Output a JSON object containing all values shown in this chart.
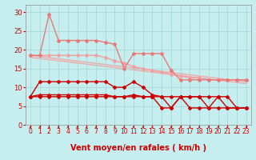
{
  "xlabel": "Vent moyen/en rafales ( km/h )",
  "xlim": [
    -0.5,
    23.5
  ],
  "ylim": [
    0,
    32
  ],
  "yticks": [
    0,
    5,
    10,
    15,
    20,
    25,
    30
  ],
  "xticks": [
    0,
    1,
    2,
    3,
    4,
    5,
    6,
    7,
    8,
    9,
    10,
    11,
    12,
    13,
    14,
    15,
    16,
    17,
    18,
    19,
    20,
    21,
    22,
    23
  ],
  "bg_color": "#c6eeee",
  "grid_color": "#a8d8d8",
  "diag_lines": [
    {
      "x0": 0,
      "y0": 18.5,
      "x1": 23,
      "y1": 11.5,
      "color": "#f0a8a8",
      "lw": 1.0
    },
    {
      "x0": 0,
      "y0": 18.0,
      "x1": 23,
      "y1": 11.0,
      "color": "#f0a8a8",
      "lw": 1.0
    }
  ],
  "series": [
    {
      "x": [
        0,
        1,
        2,
        3,
        4,
        5,
        6,
        7,
        8,
        9,
        10,
        11,
        12,
        13,
        14,
        15,
        16,
        17,
        18,
        19,
        20,
        21,
        22,
        23
      ],
      "y": [
        18.5,
        18.5,
        18.5,
        18.5,
        18.5,
        18.5,
        18.5,
        18.5,
        18.0,
        17.0,
        16.5,
        15.5,
        15.0,
        14.5,
        14.0,
        13.5,
        13.0,
        12.5,
        12.5,
        12.0,
        12.0,
        12.0,
        12.0,
        12.0
      ],
      "color": "#f0a0a0",
      "marker": "D",
      "ms": 2.0,
      "lw": 1.0,
      "zorder": 2
    },
    {
      "x": [
        0,
        1,
        2,
        3,
        4,
        5,
        6,
        7,
        8,
        9,
        10,
        11,
        12,
        13,
        14,
        15,
        16,
        17,
        18,
        19,
        20,
        21,
        22,
        23
      ],
      "y": [
        18.5,
        18.5,
        29.5,
        22.5,
        22.5,
        22.5,
        22.5,
        22.5,
        22.0,
        21.5,
        15.0,
        19.0,
        19.0,
        19.0,
        19.0,
        14.5,
        12.0,
        12.0,
        12.0,
        12.0,
        12.0,
        12.0,
        12.0,
        12.0
      ],
      "color": "#e87878",
      "marker": "D",
      "ms": 2.0,
      "lw": 1.0,
      "zorder": 3
    },
    {
      "x": [
        0,
        1,
        2,
        3,
        4,
        5,
        6,
        7,
        8,
        9,
        10,
        11,
        12,
        13,
        14,
        15,
        16,
        17,
        18,
        19,
        20,
        21,
        22,
        23
      ],
      "y": [
        7.5,
        11.5,
        11.5,
        11.5,
        11.5,
        11.5,
        11.5,
        11.5,
        11.5,
        10.0,
        10.0,
        11.5,
        10.0,
        8.0,
        7.5,
        7.5,
        7.5,
        7.5,
        7.5,
        7.5,
        7.5,
        7.5,
        4.5,
        4.5
      ],
      "color": "#cc0000",
      "marker": "D",
      "ms": 2.0,
      "lw": 1.0,
      "zorder": 4
    },
    {
      "x": [
        0,
        1,
        2,
        3,
        4,
        5,
        6,
        7,
        8,
        9,
        10,
        11,
        12,
        13,
        14,
        15,
        16,
        17,
        18,
        19,
        20,
        21,
        22,
        23
      ],
      "y": [
        7.5,
        8.0,
        8.0,
        8.0,
        8.0,
        8.0,
        8.0,
        8.0,
        8.0,
        7.5,
        7.5,
        8.0,
        7.5,
        7.5,
        4.5,
        4.5,
        7.5,
        4.5,
        4.5,
        4.5,
        4.5,
        4.5,
        4.5,
        4.5
      ],
      "color": "#cc0000",
      "marker": "D",
      "ms": 2.0,
      "lw": 1.0,
      "zorder": 4
    },
    {
      "x": [
        0,
        1,
        2,
        3,
        4,
        5,
        6,
        7,
        8,
        9,
        10,
        11,
        12,
        13,
        14,
        15,
        16,
        17,
        18,
        19,
        20,
        21,
        22,
        23
      ],
      "y": [
        7.5,
        7.5,
        7.5,
        7.5,
        7.5,
        7.5,
        7.5,
        7.5,
        7.5,
        7.5,
        7.5,
        7.5,
        7.5,
        7.5,
        7.5,
        4.5,
        7.5,
        7.5,
        7.5,
        4.5,
        7.5,
        4.5,
        4.5,
        4.5
      ],
      "color": "#cc0000",
      "marker": "D",
      "ms": 2.0,
      "lw": 1.0,
      "zorder": 4
    }
  ],
  "arrow_color": "#cc0000",
  "xlabel_color": "#cc0000",
  "xlabel_fontsize": 7,
  "tick_color": "#cc0000",
  "tick_fontsize": 5.5
}
